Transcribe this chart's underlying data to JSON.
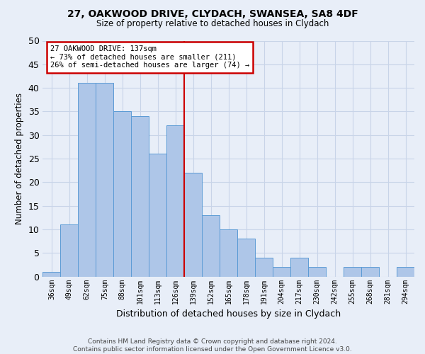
{
  "title1": "27, OAKWOOD DRIVE, CLYDACH, SWANSEA, SA8 4DF",
  "title2": "Size of property relative to detached houses in Clydach",
  "xlabel": "Distribution of detached houses by size in Clydach",
  "ylabel": "Number of detached properties",
  "categories": [
    "36sqm",
    "49sqm",
    "62sqm",
    "75sqm",
    "88sqm",
    "101sqm",
    "113sqm",
    "126sqm",
    "139sqm",
    "152sqm",
    "165sqm",
    "178sqm",
    "191sqm",
    "204sqm",
    "217sqm",
    "230sqm",
    "242sqm",
    "255sqm",
    "268sqm",
    "281sqm",
    "294sqm"
  ],
  "values": [
    1,
    11,
    41,
    41,
    35,
    34,
    26,
    32,
    22,
    13,
    10,
    8,
    4,
    2,
    4,
    2,
    0,
    2,
    2,
    0,
    2
  ],
  "bar_color": "#aec6e8",
  "bar_edge_color": "#5b9bd5",
  "vline_index": 8,
  "annotation_title": "27 OAKWOOD DRIVE: 137sqm",
  "annotation_line1": "← 73% of detached houses are smaller (211)",
  "annotation_line2": "26% of semi-detached houses are larger (74) →",
  "annotation_box_color": "#ffffff",
  "annotation_box_edge": "#cc0000",
  "vline_color": "#cc0000",
  "ylim": [
    0,
    50
  ],
  "yticks": [
    0,
    5,
    10,
    15,
    20,
    25,
    30,
    35,
    40,
    45,
    50
  ],
  "grid_color": "#c8d4e8",
  "background_color": "#e8eef8",
  "footer": "Contains HM Land Registry data © Crown copyright and database right 2024.\nContains public sector information licensed under the Open Government Licence v3.0."
}
